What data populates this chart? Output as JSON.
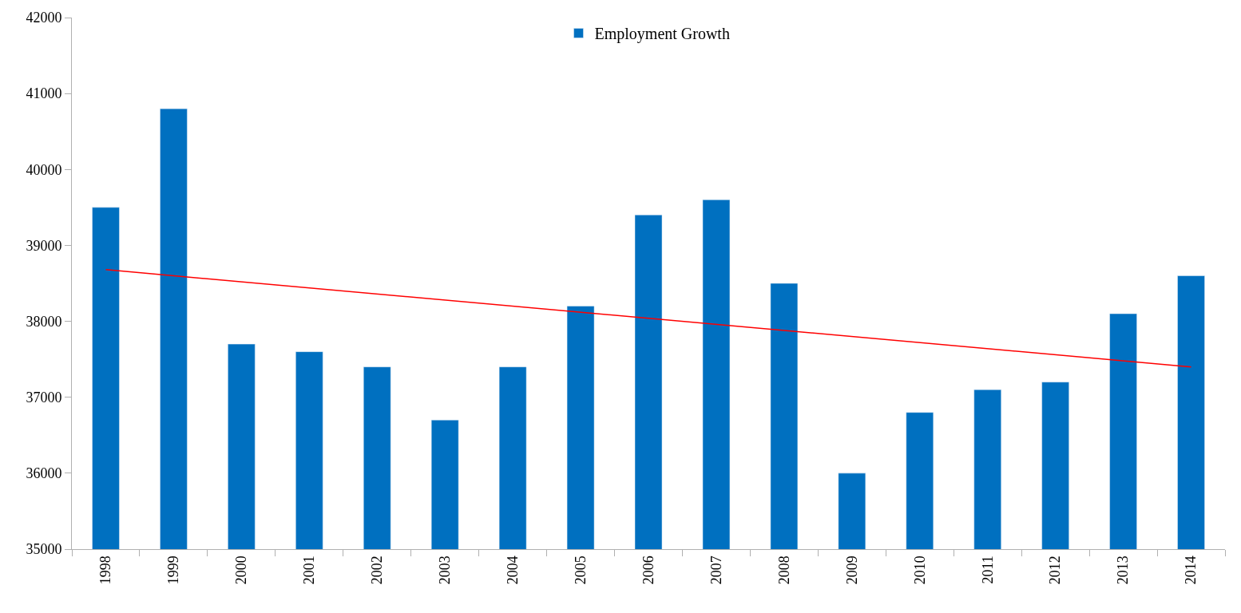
{
  "chart_data": {
    "type": "bar",
    "categories": [
      "1998",
      "1999",
      "2000",
      "2001",
      "2002",
      "2003",
      "2004",
      "2005",
      "2006",
      "2007",
      "2008",
      "2009",
      "2010",
      "2011",
      "2012",
      "2013",
      "2014"
    ],
    "series": [
      {
        "name": "Employment Growth",
        "color": "#0070c0",
        "values": [
          39500,
          40800,
          37700,
          37600,
          37400,
          36700,
          37400,
          38200,
          39400,
          39600,
          38500,
          36000,
          36800,
          37100,
          37200,
          38100,
          38600
        ]
      },
      {
        "type": "line",
        "color": "#ff0000",
        "values": [
          38680,
          null,
          null,
          null,
          null,
          null,
          null,
          null,
          null,
          null,
          null,
          null,
          null,
          null,
          null,
          null,
          37400
        ]
      }
    ],
    "ylim": [
      35000,
      42000
    ],
    "yticks": [
      35000,
      36000,
      37000,
      38000,
      39000,
      40000,
      41000,
      42000
    ],
    "legend": "top",
    "marker": "none",
    "line_style": "solid"
  }
}
